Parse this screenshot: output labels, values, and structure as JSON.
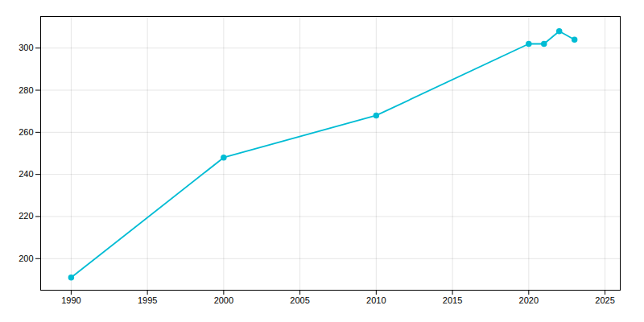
{
  "chart_data": {
    "type": "line",
    "x": [
      1990,
      2000,
      2010,
      2020,
      2021,
      2022,
      2023
    ],
    "values": [
      191,
      248,
      268,
      302,
      302,
      308,
      304
    ],
    "color": "#00BCD4",
    "marker": "circle",
    "xlim": [
      1988,
      2026
    ],
    "ylim": [
      185,
      315
    ],
    "xticks": [
      1990,
      1995,
      2000,
      2005,
      2010,
      2015,
      2020,
      2025
    ],
    "yticks": [
      200,
      220,
      240,
      260,
      280,
      300
    ],
    "grid": true
  }
}
